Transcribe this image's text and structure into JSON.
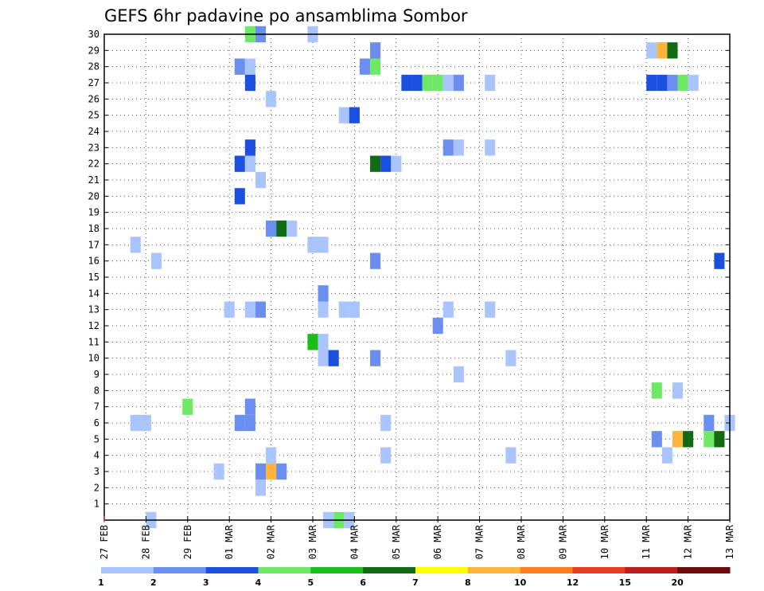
{
  "chart_data": {
    "type": "heatmap",
    "title": "GEFS 6hr padavine po ansamblima Sombor",
    "y_ticks": [
      "1",
      "2",
      "3",
      "4",
      "5",
      "6",
      "7",
      "8",
      "9",
      "10",
      "11",
      "12",
      "13",
      "14",
      "15",
      "16",
      "17",
      "18",
      "19",
      "20",
      "21",
      "22",
      "23",
      "24",
      "25",
      "26",
      "27",
      "28",
      "29",
      "30"
    ],
    "y_range": [
      0,
      30
    ],
    "x_ticks": [
      "27 FEB",
      "28 FEB",
      "29 FEB",
      "01 MAR",
      "02 MAR",
      "03 MAR",
      "04 MAR",
      "05 MAR",
      "06 MAR",
      "07 MAR",
      "08 MAR",
      "09 MAR",
      "10 MAR",
      "11 MAR",
      "12 MAR",
      "13 MAR"
    ],
    "x_unit": "6-hour step (4 per day)",
    "x_range": [
      0,
      60
    ],
    "grid": true,
    "colorbar": {
      "labels": [
        "1",
        "2",
        "3",
        "4",
        "5",
        "6",
        "7",
        "8",
        "10",
        "12",
        "15",
        "20"
      ],
      "colors": [
        "#aac4ff",
        "#6a8ff0",
        "#1a4fe0",
        "#6fe866",
        "#19bf18",
        "#126b12",
        "#ffff00",
        "#ffb43c",
        "#ff7f1e",
        "#e83c1e",
        "#bd1f1f",
        "#6b0b0b"
      ]
    },
    "cells": [
      {
        "x": 14.0,
        "y": 30,
        "c": 4
      },
      {
        "x": 15.0,
        "y": 30,
        "c": 2
      },
      {
        "x": 20.0,
        "y": 30,
        "c": 1
      },
      {
        "x": 26.0,
        "y": 29,
        "c": 2
      },
      {
        "x": 52.5,
        "y": 29,
        "c": 1
      },
      {
        "x": 53.5,
        "y": 29,
        "c": 8
      },
      {
        "x": 54.5,
        "y": 29,
        "c": 6
      },
      {
        "x": 13.0,
        "y": 28,
        "c": 2
      },
      {
        "x": 14.0,
        "y": 28,
        "c": 1
      },
      {
        "x": 25.0,
        "y": 28,
        "c": 2
      },
      {
        "x": 26.0,
        "y": 28,
        "c": 4
      },
      {
        "x": 14.0,
        "y": 27,
        "c": 3
      },
      {
        "x": 29.0,
        "y": 27,
        "c": 3
      },
      {
        "x": 30.0,
        "y": 27,
        "c": 3
      },
      {
        "x": 31.0,
        "y": 27,
        "c": 4
      },
      {
        "x": 32.0,
        "y": 27,
        "c": 4
      },
      {
        "x": 33.0,
        "y": 27,
        "c": 1
      },
      {
        "x": 34.0,
        "y": 27,
        "c": 2
      },
      {
        "x": 37.0,
        "y": 27,
        "c": 1
      },
      {
        "x": 52.5,
        "y": 27,
        "c": 3
      },
      {
        "x": 53.5,
        "y": 27,
        "c": 3
      },
      {
        "x": 54.5,
        "y": 27,
        "c": 2
      },
      {
        "x": 55.5,
        "y": 27,
        "c": 4
      },
      {
        "x": 56.5,
        "y": 27,
        "c": 1
      },
      {
        "x": 16.0,
        "y": 26,
        "c": 1
      },
      {
        "x": 23.0,
        "y": 25,
        "c": 1
      },
      {
        "x": 24.0,
        "y": 25,
        "c": 3
      },
      {
        "x": 14.0,
        "y": 23,
        "c": 3
      },
      {
        "x": 33.0,
        "y": 23,
        "c": 2
      },
      {
        "x": 34.0,
        "y": 23,
        "c": 1
      },
      {
        "x": 37.0,
        "y": 23,
        "c": 1
      },
      {
        "x": 13.0,
        "y": 22,
        "c": 3
      },
      {
        "x": 14.0,
        "y": 22,
        "c": 1
      },
      {
        "x": 26.0,
        "y": 22,
        "c": 6
      },
      {
        "x": 27.0,
        "y": 22,
        "c": 3
      },
      {
        "x": 28.0,
        "y": 22,
        "c": 1
      },
      {
        "x": 15.0,
        "y": 21,
        "c": 1
      },
      {
        "x": 13.0,
        "y": 20,
        "c": 3
      },
      {
        "x": 16.0,
        "y": 18,
        "c": 2
      },
      {
        "x": 17.0,
        "y": 18,
        "c": 6
      },
      {
        "x": 18.0,
        "y": 18,
        "c": 1
      },
      {
        "x": 3.0,
        "y": 17,
        "c": 1
      },
      {
        "x": 20.0,
        "y": 17,
        "c": 1
      },
      {
        "x": 21.0,
        "y": 17,
        "c": 1
      },
      {
        "x": 5.0,
        "y": 16,
        "c": 1
      },
      {
        "x": 26.0,
        "y": 16,
        "c": 2
      },
      {
        "x": 59.0,
        "y": 16,
        "c": 3
      },
      {
        "x": 21.0,
        "y": 14,
        "c": 2
      },
      {
        "x": 12.0,
        "y": 13,
        "c": 1
      },
      {
        "x": 14.0,
        "y": 13,
        "c": 1
      },
      {
        "x": 15.0,
        "y": 13,
        "c": 2
      },
      {
        "x": 21.0,
        "y": 13,
        "c": 1
      },
      {
        "x": 23.0,
        "y": 13,
        "c": 1
      },
      {
        "x": 24.0,
        "y": 13,
        "c": 1
      },
      {
        "x": 33.0,
        "y": 13,
        "c": 1
      },
      {
        "x": 37.0,
        "y": 13,
        "c": 1
      },
      {
        "x": 32.0,
        "y": 12,
        "c": 2
      },
      {
        "x": 20.0,
        "y": 11,
        "c": 5
      },
      {
        "x": 21.0,
        "y": 11,
        "c": 1
      },
      {
        "x": 21.0,
        "y": 10,
        "c": 1
      },
      {
        "x": 22.0,
        "y": 10,
        "c": 3
      },
      {
        "x": 26.0,
        "y": 10,
        "c": 2
      },
      {
        "x": 39.0,
        "y": 10,
        "c": 1
      },
      {
        "x": 34.0,
        "y": 9,
        "c": 1
      },
      {
        "x": 53.0,
        "y": 8,
        "c": 4
      },
      {
        "x": 55.0,
        "y": 8,
        "c": 1
      },
      {
        "x": 8.0,
        "y": 7,
        "c": 4
      },
      {
        "x": 14.0,
        "y": 7,
        "c": 2
      },
      {
        "x": 3.0,
        "y": 6,
        "c": 1
      },
      {
        "x": 4.0,
        "y": 6,
        "c": 1
      },
      {
        "x": 13.0,
        "y": 6,
        "c": 2
      },
      {
        "x": 14.0,
        "y": 6,
        "c": 2
      },
      {
        "x": 27.0,
        "y": 6,
        "c": 1
      },
      {
        "x": 58.0,
        "y": 6,
        "c": 2
      },
      {
        "x": 60.0,
        "y": 6,
        "c": 1
      },
      {
        "x": 53.0,
        "y": 5,
        "c": 2
      },
      {
        "x": 55.0,
        "y": 5,
        "c": 8
      },
      {
        "x": 56.0,
        "y": 5,
        "c": 6
      },
      {
        "x": 58.0,
        "y": 5,
        "c": 4
      },
      {
        "x": 59.0,
        "y": 5,
        "c": 6
      },
      {
        "x": 16.0,
        "y": 4,
        "c": 1
      },
      {
        "x": 27.0,
        "y": 4,
        "c": 1
      },
      {
        "x": 39.0,
        "y": 4,
        "c": 1
      },
      {
        "x": 54.0,
        "y": 4,
        "c": 1
      },
      {
        "x": 11.0,
        "y": 3,
        "c": 1
      },
      {
        "x": 15.0,
        "y": 3,
        "c": 2
      },
      {
        "x": 16.0,
        "y": 3,
        "c": 8
      },
      {
        "x": 17.0,
        "y": 3,
        "c": 2
      },
      {
        "x": 15.0,
        "y": 2,
        "c": 1
      },
      {
        "x": 4.5,
        "y": 0,
        "c": 1
      },
      {
        "x": 21.5,
        "y": 0,
        "c": 1
      },
      {
        "x": 22.5,
        "y": 0,
        "c": 4
      },
      {
        "x": 23.5,
        "y": 0,
        "c": 1
      }
    ]
  }
}
